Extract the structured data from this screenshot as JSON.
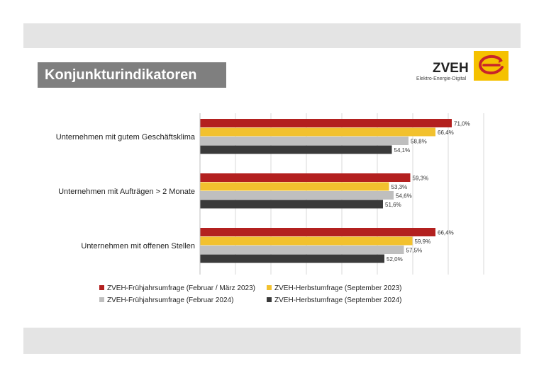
{
  "title": "Konjunkturindikatoren",
  "logo": {
    "name": "ZVEH",
    "tagline": "Elektro-Energie-Digital"
  },
  "colors": {
    "series1": "#b3201f",
    "series2": "#f2c12e",
    "series3": "#bfbfbf",
    "series4": "#3a3a3a",
    "title_bg": "#7f7f7f",
    "band": "#e4e4e4",
    "logo_bg": "#f5c100",
    "logo_mark": "#c8242a"
  },
  "chart_data": {
    "type": "bar",
    "orientation": "horizontal",
    "categories": [
      "Unternehmen mit gutem Geschäftsklima",
      "Unternehmen mit Aufträgen > 2 Monate",
      "Unternehmen mit offenen Stellen"
    ],
    "series": [
      {
        "name": "ZVEH-Frühjahrsumfrage (Februar / März 2023)",
        "values": [
          71.0,
          59.3,
          66.4
        ],
        "labels": [
          "71,0%",
          "59,3%",
          "66,4%"
        ]
      },
      {
        "name": "ZVEH-Herbstumfrage (September 2023)",
        "values": [
          66.4,
          53.3,
          59.9
        ],
        "labels": [
          "66,4%",
          "53,3%",
          "59,9%"
        ]
      },
      {
        "name": "ZVEH-Frühjahrsumfrage (Februar 2024)",
        "values": [
          58.8,
          54.6,
          57.5
        ],
        "labels": [
          "58,8%",
          "54,6%",
          "57,5%"
        ]
      },
      {
        "name": "ZVEH-Herbstumfrage (September 2024)",
        "values": [
          54.1,
          51.6,
          52.0
        ],
        "labels": [
          "54,1%",
          "51,6%",
          "52,0%"
        ]
      }
    ],
    "xlim": [
      0,
      80
    ],
    "grid": true,
    "legend_position": "bottom"
  }
}
